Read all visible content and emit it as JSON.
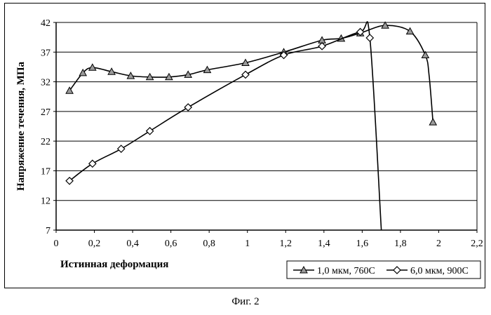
{
  "chart_data": {
    "type": "line",
    "ylabel": "Напряжение течения, МПа",
    "xlabel": "Истинная деформация",
    "xlim": [
      0,
      2.2
    ],
    "ylim": [
      7,
      42
    ],
    "x_ticks": [
      0,
      0.2,
      0.4,
      0.6,
      0.8,
      1,
      1.2,
      1.4,
      1.6,
      1.8,
      2,
      2.2
    ],
    "x_tick_labels": [
      "0",
      "0,2",
      "0,4",
      "0,6",
      "0,8",
      "1",
      "1,2",
      "1,4",
      "1,6",
      "1,8",
      "2",
      "2,2"
    ],
    "y_ticks": [
      7,
      12,
      17,
      22,
      27,
      32,
      37,
      42
    ],
    "y_tick_labels": [
      "7",
      "12",
      "17",
      "22",
      "27",
      "32",
      "37",
      "42"
    ],
    "grid": "horizontal",
    "legend_position": "bottom-right",
    "series": [
      {
        "name": "1,0 мкм, 760С",
        "marker": "triangle",
        "x": [
          0.07,
          0.14,
          0.19,
          0.29,
          0.39,
          0.49,
          0.59,
          0.69,
          0.79,
          0.99,
          1.19,
          1.39,
          1.49,
          1.59,
          1.72,
          1.85,
          1.93,
          1.97
        ],
        "y": [
          30.5,
          33.5,
          34.4,
          33.7,
          33.0,
          32.8,
          32.8,
          33.2,
          34.0,
          35.2,
          37.0,
          39.0,
          39.3,
          40.2,
          41.5,
          40.5,
          36.5,
          25.2
        ],
        "line_extra": [
          [
            1.95,
            33.0
          ]
        ]
      },
      {
        "name": "6,0 мкм, 900С",
        "marker": "diamond",
        "x": [
          0.07,
          0.19,
          0.34,
          0.49,
          0.69,
          0.99,
          1.19,
          1.39,
          1.59,
          1.64
        ],
        "y": [
          15.3,
          18.2,
          20.7,
          23.7,
          27.7,
          33.2,
          36.5,
          38.0,
          40.4,
          39.4
        ],
        "line_extra": [
          [
            1.7,
            7.0
          ]
        ]
      }
    ]
  },
  "caption": "Фиг. 2"
}
